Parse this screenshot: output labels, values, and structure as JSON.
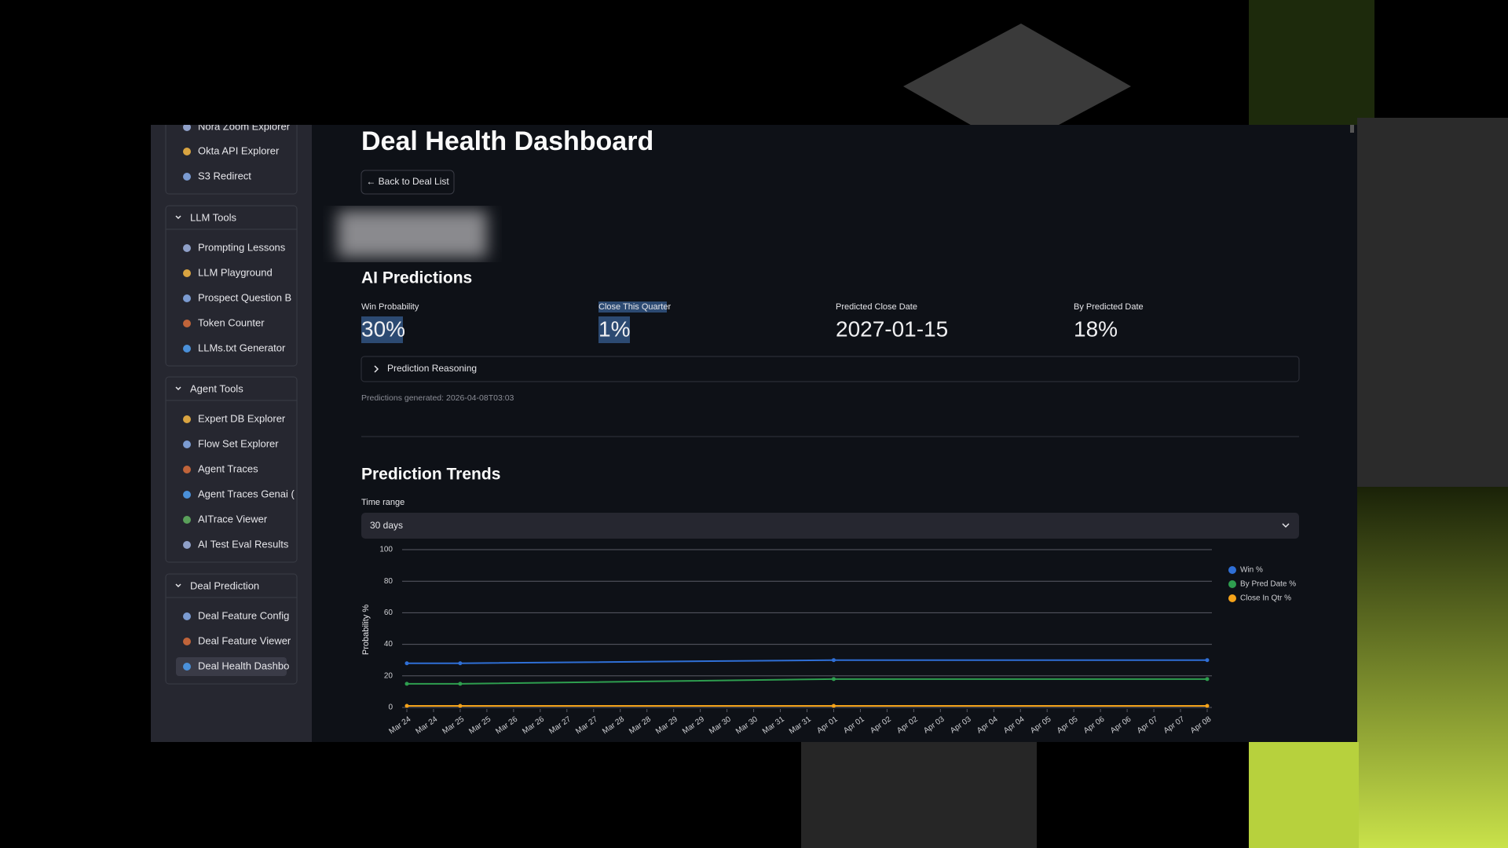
{
  "sidebar": {
    "top_items": [
      "Nora Zoom Explorer",
      "Okta API Explorer",
      "S3 Redirect"
    ],
    "groups": [
      {
        "title": "LLM Tools",
        "items": [
          "Prompting Lessons",
          "LLM Playground",
          "Prospect Question B",
          "Token Counter",
          "LLMs.txt Generator"
        ]
      },
      {
        "title": "Agent Tools",
        "items": [
          "Expert DB Explorer",
          "Flow Set Explorer",
          "Agent Traces",
          "Agent Traces Genai (",
          "AITrace Viewer",
          "AI Test Eval Results"
        ]
      },
      {
        "title": "Deal Prediction",
        "items": [
          "Deal Feature Config",
          "Deal Feature Viewer",
          "Deal Health Dashbo"
        ]
      }
    ]
  },
  "main": {
    "title": "Deal Health Dashboard",
    "back_button": "← Back to Deal List",
    "section_title": "AI Predictions",
    "metrics": [
      {
        "label": "Win Probability",
        "value": "30%"
      },
      {
        "label": "Close This Quarter",
        "value": "1%"
      },
      {
        "label": "Predicted Close Date",
        "value": "2027-01-15"
      },
      {
        "label": "By Predicted Date",
        "value": "18%"
      }
    ],
    "expander": "Prediction Reasoning",
    "generated_note": "Predictions generated: 2026-04-08T03:03",
    "trends_title": "Prediction Trends",
    "time_range_label": "Time range",
    "time_range_value": "30 days"
  },
  "chart_data": {
    "type": "line",
    "y_label": "Probability %",
    "x": [
      0,
      1,
      8,
      15
    ],
    "xlim": [
      0,
      15
    ],
    "xticks": [
      {
        "value": 0,
        "label": "Mar 24"
      },
      {
        "value": 0.5,
        "label": "Mar 24"
      },
      {
        "value": 1,
        "label": "Mar 25"
      },
      {
        "value": 1.5,
        "label": "Mar 25"
      },
      {
        "value": 2,
        "label": "Mar 26"
      },
      {
        "value": 2.5,
        "label": "Mar 26"
      },
      {
        "value": 3,
        "label": "Mar 27"
      },
      {
        "value": 3.5,
        "label": "Mar 27"
      },
      {
        "value": 4,
        "label": "Mar 28"
      },
      {
        "value": 4.5,
        "label": "Mar 28"
      },
      {
        "value": 5,
        "label": "Mar 29"
      },
      {
        "value": 5.5,
        "label": "Mar 29"
      },
      {
        "value": 6,
        "label": "Mar 30"
      },
      {
        "value": 6.5,
        "label": "Mar 30"
      },
      {
        "value": 7,
        "label": "Mar 31"
      },
      {
        "value": 7.5,
        "label": "Mar 31"
      },
      {
        "value": 8,
        "label": "Apr 01"
      },
      {
        "value": 8.5,
        "label": "Apr 01"
      },
      {
        "value": 9,
        "label": "Apr 02"
      },
      {
        "value": 9.5,
        "label": "Apr 02"
      },
      {
        "value": 10,
        "label": "Apr 03"
      },
      {
        "value": 10.5,
        "label": "Apr 03"
      },
      {
        "value": 11,
        "label": "Apr 04"
      },
      {
        "value": 11.5,
        "label": "Apr 04"
      },
      {
        "value": 12,
        "label": "Apr 05"
      },
      {
        "value": 12.5,
        "label": "Apr 05"
      },
      {
        "value": 13,
        "label": "Apr 06"
      },
      {
        "value": 13.5,
        "label": "Apr 06"
      },
      {
        "value": 14,
        "label": "Apr 07"
      },
      {
        "value": 14.5,
        "label": "Apr 07"
      },
      {
        "value": 15,
        "label": "Apr 08"
      }
    ],
    "ylim": [
      0,
      100
    ],
    "yticks": [
      0,
      20,
      40,
      60,
      80,
      100
    ],
    "grid": true,
    "series": [
      {
        "name": "Win %",
        "color": "#2f6fd6",
        "values": [
          28,
          28,
          30,
          30
        ]
      },
      {
        "name": "By Pred Date %",
        "color": "#2e9e4f",
        "values": [
          15,
          15,
          18,
          18
        ]
      },
      {
        "name": "Close In Qtr %",
        "color": "#f5a31a",
        "values": [
          1,
          1,
          1,
          1
        ]
      }
    ]
  }
}
